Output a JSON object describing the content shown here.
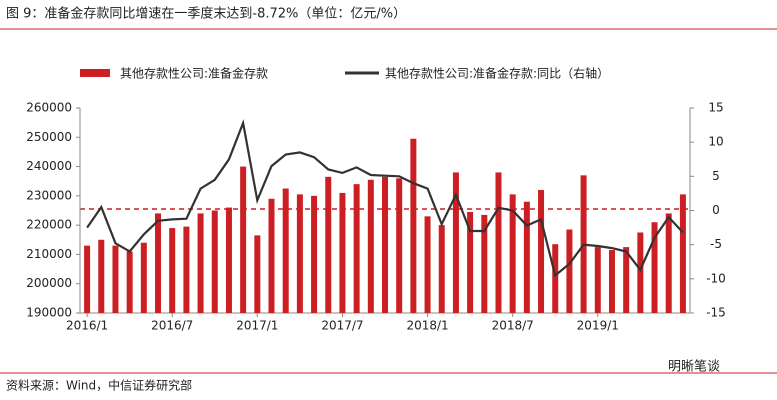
{
  "title": "图 9：准备金存款同比增速在一季度末达到-8.72%（单位：亿元/%）",
  "source": "资料来源：Wind，中信证券研究部",
  "watermark": "明晰笔谈",
  "chart_data": {
    "type": "bar",
    "categories": [
      "2016/1",
      null,
      null,
      null,
      null,
      null,
      "2016/7",
      null,
      null,
      null,
      null,
      null,
      "2017/1",
      null,
      null,
      null,
      null,
      null,
      "2017/7",
      null,
      null,
      null,
      null,
      null,
      "2018/1",
      null,
      null,
      null,
      null,
      null,
      "2018/7",
      null,
      null,
      null,
      null,
      null,
      "2019/1",
      null,
      null,
      null,
      null,
      null,
      null
    ],
    "series": [
      {
        "name": "其他存款性公司:准备金存款",
        "color": "#cc1f24",
        "type": "bar",
        "values": [
          213000,
          215000,
          213000,
          211000,
          214000,
          224000,
          219000,
          219500,
          224000,
          225000,
          226000,
          240000,
          216500,
          229000,
          232500,
          230500,
          230000,
          236500,
          231000,
          234000,
          235500,
          236500,
          236000,
          249500,
          223000,
          220000,
          238000,
          224500,
          223500,
          238000,
          230500,
          228000,
          232000,
          213500,
          218500,
          237000,
          212500,
          211500,
          212500,
          217500,
          221000,
          224000,
          230500
        ]
      },
      {
        "name": "其他存款性公司:准备金存款:同比（右轴）",
        "color": "#333333",
        "type": "line",
        "axis": "y2",
        "values": [
          -2.5,
          0.5,
          -4.8,
          -6,
          -3.5,
          -1.5,
          -1.3,
          -1.2,
          3.2,
          4.5,
          7.5,
          12.8,
          1.5,
          6.5,
          8.2,
          8.5,
          7.8,
          6,
          5.5,
          6.3,
          5.2,
          5.1,
          5,
          4,
          3.2,
          -2,
          2.3,
          -3,
          -3,
          0.4,
          0,
          -2.2,
          -1.3,
          -9.5,
          -7.8,
          -5,
          -5.2,
          -5.5,
          -6,
          -8.7,
          -4,
          -1,
          -3.2
        ]
      }
    ],
    "ylim": [
      190000,
      260000
    ],
    "yticks": [
      190000,
      200000,
      210000,
      220000,
      230000,
      240000,
      250000,
      260000
    ],
    "y2lim": [
      -15,
      15
    ],
    "y2ticks": [
      -15,
      -10,
      -5,
      0,
      5,
      10,
      15
    ],
    "grid": false
  }
}
